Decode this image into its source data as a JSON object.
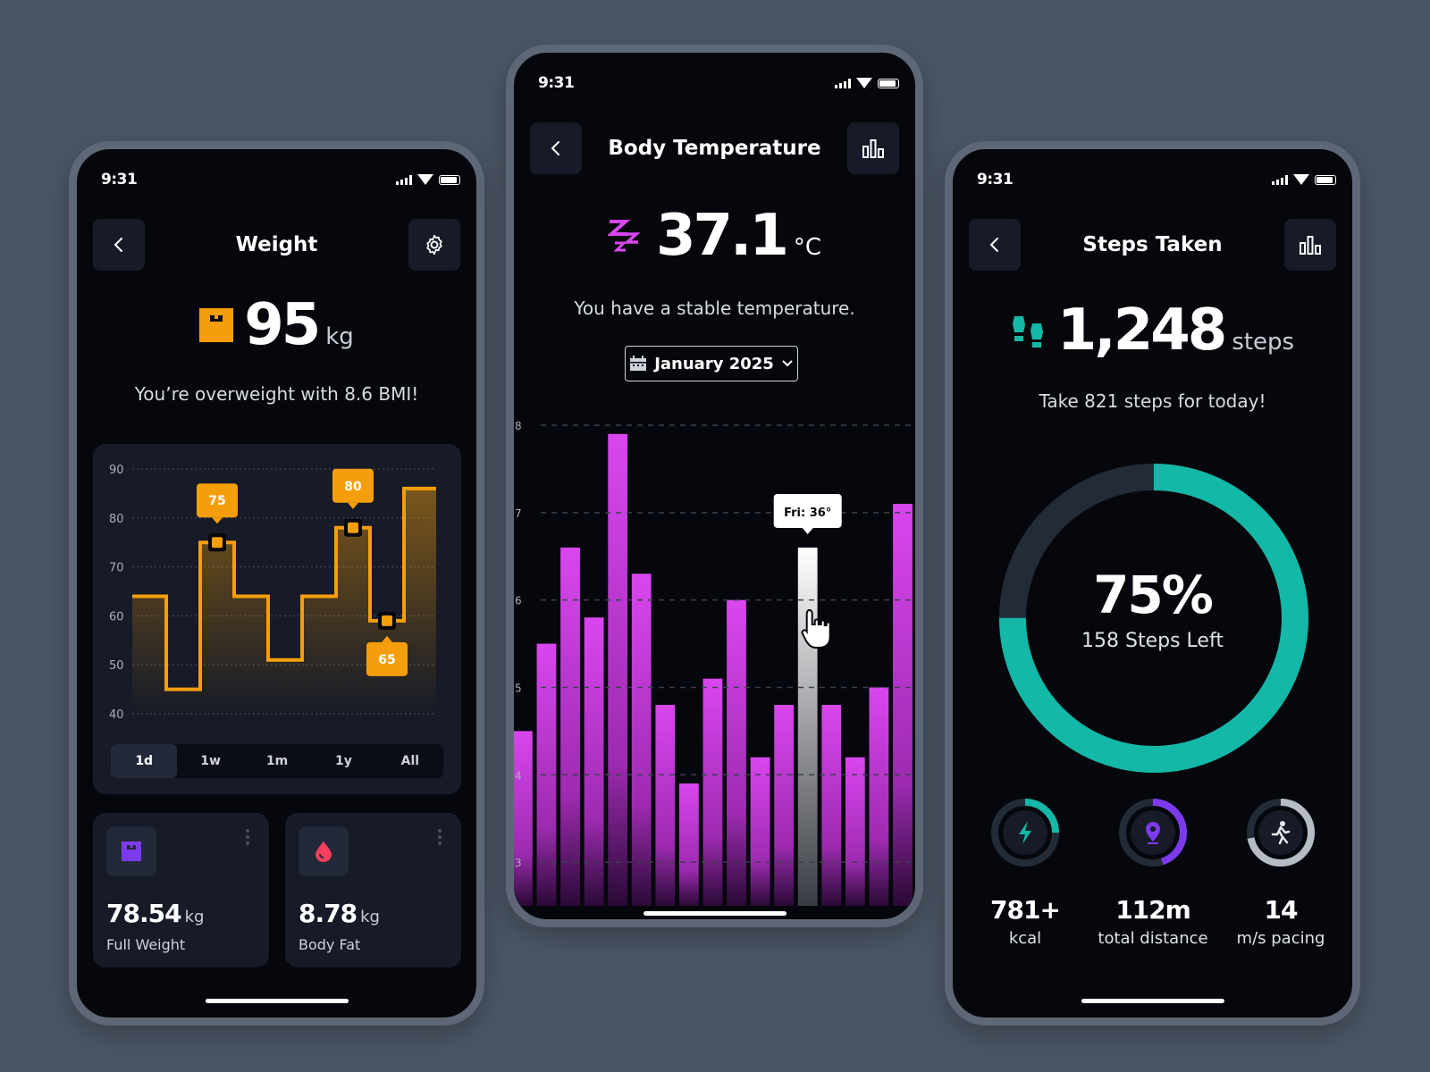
{
  "status_time": "9:31",
  "weight": {
    "title": "Weight",
    "value": "95",
    "unit": "kg",
    "message": "You’re overweight with 8.6 BMI!",
    "accent": "#f59e0b",
    "ranges": [
      "1d",
      "1w",
      "1m",
      "1y",
      "All"
    ],
    "active_range": "1d",
    "cards": [
      {
        "value": "78.54",
        "unit": "kg",
        "label": "Full Weight",
        "icon": "scale-icon",
        "color": "#7c3aed"
      },
      {
        "value": "8.78",
        "unit": "kg",
        "label": "Body Fat",
        "icon": "drop-icon",
        "color": "#f43f5e"
      }
    ]
  },
  "temperature": {
    "title": "Body Temperature",
    "value": "37.1",
    "unit": "°C",
    "message": "You have a stable temperature.",
    "month": "January 2025",
    "tooltip": "Fri: 36°",
    "accent": "#d946ef"
  },
  "steps": {
    "title": "Steps Taken",
    "value": "1,248",
    "unit": "steps",
    "message": "Take 821 steps for today!",
    "percent_label": "75%",
    "percent": 0.75,
    "left_label": "158 Steps Left",
    "accent": "#14b8a6",
    "stats": [
      {
        "value": "781+",
        "label": "kcal",
        "icon": "bolt-icon",
        "fraction": 0.25,
        "color": "#14b8a6"
      },
      {
        "value": "112m",
        "label": "total distance",
        "icon": "location-pin-icon",
        "fraction": 0.45,
        "color": "#7c3aed"
      },
      {
        "value": "14",
        "label": "m/s pacing",
        "icon": "runner-icon",
        "fraction": 0.72,
        "color": "#b6bcc6"
      }
    ]
  },
  "chart_data": [
    {
      "type": "line",
      "ylim": [
        40,
        90
      ],
      "yticks": [
        "90",
        "80",
        "70",
        "60",
        "50",
        "40"
      ],
      "x": [
        0,
        1,
        2,
        3,
        4,
        5,
        6,
        7,
        8
      ],
      "values": [
        64,
        45,
        75,
        64,
        51,
        64,
        78,
        59,
        86
      ],
      "annotations": [
        "75",
        "80",
        "65"
      ]
    },
    {
      "type": "bar",
      "ylim": [
        2.5,
        8
      ],
      "yticks": [
        "8",
        "7",
        "6",
        "5",
        "4",
        "3"
      ],
      "values": [
        4.5,
        5.5,
        6.6,
        5.8,
        7.9,
        6.3,
        4.8,
        3.9,
        5.1,
        6.0,
        4.2,
        4.8,
        6.6,
        4.8,
        4.2,
        5.0,
        7.1
      ],
      "highlight_index": 12
    }
  ]
}
